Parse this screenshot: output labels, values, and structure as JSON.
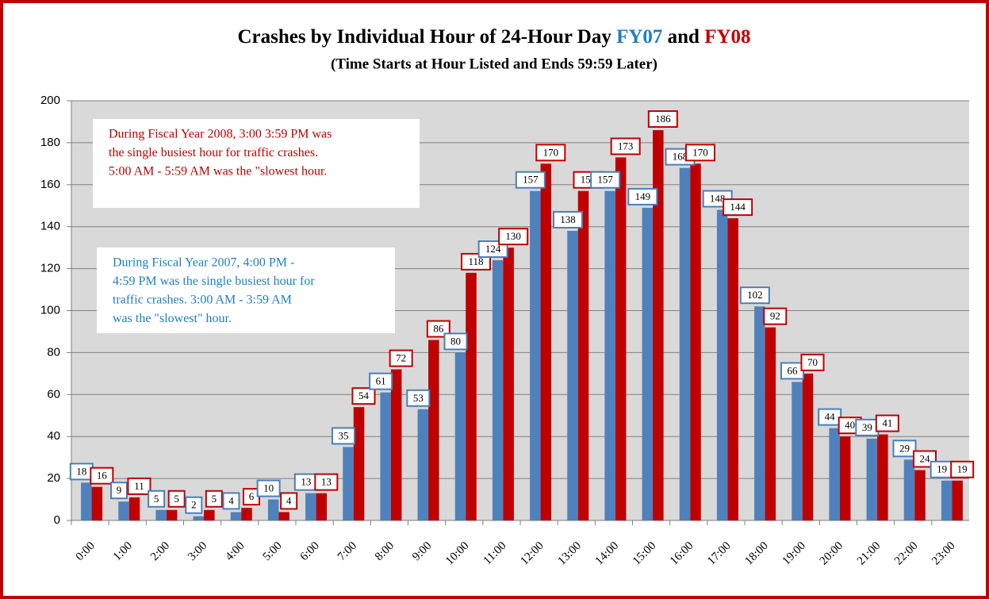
{
  "chart_data": {
    "type": "bar",
    "title": "Crashes by Individual Hour of 24-Hour Day",
    "title_joiner": "and",
    "subtitle": "(Time Starts at Hour Listed and Ends 59:59 Later)",
    "categories": [
      "0:00",
      "1:00",
      "2:00",
      "3:00",
      "4:00",
      "5:00",
      "6:00",
      "7:00",
      "8:00",
      "9:00",
      "10:00",
      "11:00",
      "12:00",
      "13:00",
      "14:00",
      "15:00",
      "16:00",
      "17:00",
      "18:00",
      "19:00",
      "20:00",
      "21:00",
      "22:00",
      "23:00"
    ],
    "series": [
      {
        "name": "FY07",
        "color": "#4f81bd",
        "label_border": "#4a7ebb",
        "values": [
          18,
          9,
          5,
          2,
          4,
          10,
          13,
          35,
          61,
          53,
          80,
          124,
          157,
          138,
          157,
          149,
          168,
          148,
          102,
          66,
          44,
          39,
          29,
          19
        ]
      },
      {
        "name": "FY08",
        "color": "#c00000",
        "label_border": "#c00000",
        "values": [
          16,
          11,
          5,
          5,
          6,
          4,
          13,
          54,
          72,
          86,
          118,
          130,
          170,
          157,
          173,
          186,
          170,
          144,
          92,
          70,
          40,
          41,
          24,
          19
        ]
      }
    ],
    "ylim": [
      0,
      200
    ],
    "yticks": [
      0,
      20,
      40,
      60,
      80,
      100,
      120,
      140,
      160,
      180,
      200
    ],
    "grid": true,
    "annotations": [
      {
        "color": "#c00000",
        "lines": [
          "During Fiscal Year 2008, 3:00   3:59 PM was",
          "the single busiest hour for traffic crashes.",
          "5:00 AM - 5:59 AM was the \"slowest hour."
        ]
      },
      {
        "color": "#1f7fc4",
        "lines": [
          "During Fiscal Year 2007, 4:00 PM -",
          "4:59 PM was the single busiest hour for",
          "traffic crashes.  3:00 AM - 3:59 AM",
          "was the \"slowest\" hour."
        ]
      }
    ]
  }
}
